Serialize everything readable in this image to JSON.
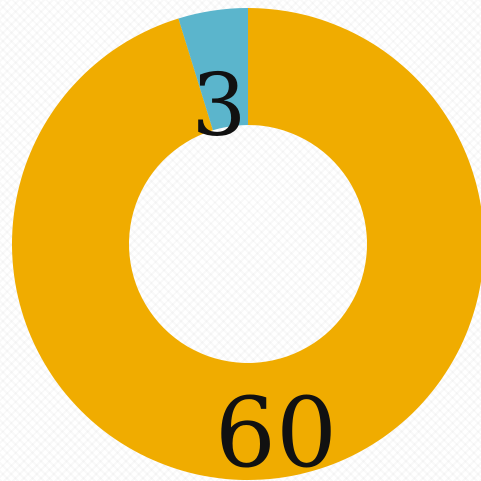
{
  "chart_data": {
    "type": "donut",
    "title": "",
    "categories": [
      "",
      ""
    ],
    "values": [
      60,
      3
    ],
    "colors": [
      "#F0AC00",
      "#5BB5CC"
    ],
    "data_labels": [
      "60",
      "3"
    ],
    "legend": "none",
    "start_angle_deg": 0,
    "direction": "clockwise"
  }
}
